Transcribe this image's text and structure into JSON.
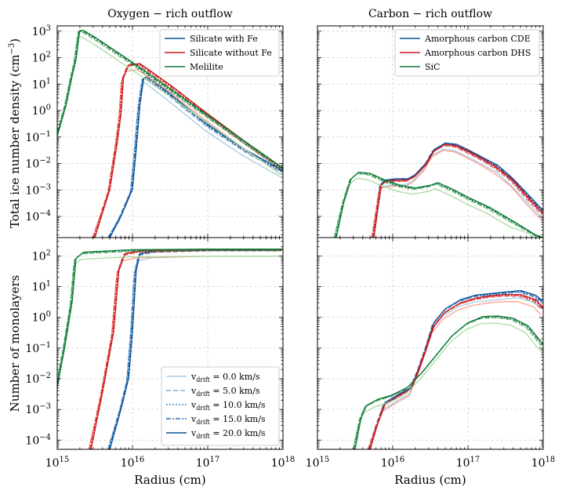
{
  "figure": {
    "xlabel": "Radius (cm)",
    "ylabel_top": "Total ice number density (cm",
    "ylabel_top_exp": "−3",
    "ylabel_top_close": ")",
    "ylabel_bottom": "Number of monolayers"
  },
  "chart_data": [
    {
      "type": "line",
      "id": "oxygen-density",
      "title": "Oxygen − rich outflow",
      "xlabel": "Radius (cm)",
      "ylabel": "Total ice number density (cm^-3)",
      "xscale": "log",
      "yscale": "log",
      "xlim_exp": [
        15,
        18
      ],
      "ylim_exp": [
        -4.8,
        3.2
      ],
      "grid": true,
      "legend_position": "top-right",
      "series": [
        {
          "name": "Silicate with Fe",
          "color": "#08519c",
          "light": "#a6cbe6",
          "points_log": [
            [
              15.7,
              -4.8
            ],
            [
              15.85,
              -4.0
            ],
            [
              16.0,
              -3.0
            ],
            [
              16.05,
              -1.5
            ],
            [
              16.1,
              0.2
            ],
            [
              16.15,
              1.2
            ],
            [
              16.2,
              1.25
            ],
            [
              16.5,
              0.6
            ],
            [
              17.0,
              -0.55
            ],
            [
              17.5,
              -1.5
            ],
            [
              18.0,
              -2.3
            ]
          ]
        },
        {
          "name": "Silicate without Fe",
          "color": "#cb181d",
          "light": "#fca189",
          "points_log": [
            [
              15.5,
              -4.8
            ],
            [
              15.7,
              -3.0
            ],
            [
              15.8,
              -1.2
            ],
            [
              15.85,
              -0.1
            ],
            [
              15.88,
              1.2
            ],
            [
              15.95,
              1.7
            ],
            [
              16.1,
              1.75
            ],
            [
              16.5,
              0.95
            ],
            [
              17.0,
              -0.15
            ],
            [
              17.5,
              -1.2
            ],
            [
              18.0,
              -2.2
            ]
          ]
        },
        {
          "name": "Melilite",
          "color": "#0e7a36",
          "light": "#a8dca0",
          "points_log": [
            [
              15.0,
              -1.0
            ],
            [
              15.12,
              0.2
            ],
            [
              15.2,
              1.3
            ],
            [
              15.25,
              1.9
            ],
            [
              15.3,
              3.0
            ],
            [
              15.35,
              3.0
            ],
            [
              15.5,
              2.75
            ],
            [
              16.0,
              1.8
            ],
            [
              16.5,
              0.8
            ],
            [
              17.0,
              -0.2
            ],
            [
              17.5,
              -1.2
            ],
            [
              18.0,
              -2.2
            ]
          ]
        }
      ],
      "legend": [
        "Silicate with Fe",
        "Silicate without Fe",
        "Melilite"
      ]
    },
    {
      "type": "line",
      "id": "carbon-density",
      "title": "Carbon − rich outflow",
      "xlabel": "Radius (cm)",
      "ylabel": "",
      "xscale": "log",
      "yscale": "log",
      "xlim_exp": [
        15,
        18
      ],
      "ylim_exp": [
        -4.8,
        3.2
      ],
      "grid": true,
      "legend_position": "top-right",
      "series": [
        {
          "name": "Amorphous carbon CDE",
          "color": "#08519c",
          "light": "#a6cbe6",
          "points_log": [
            [
              15.75,
              -4.8
            ],
            [
              15.8,
              -3.8
            ],
            [
              15.85,
              -2.8
            ],
            [
              15.9,
              -2.65
            ],
            [
              16.05,
              -2.6
            ],
            [
              16.2,
              -2.6
            ],
            [
              16.3,
              -2.45
            ],
            [
              16.45,
              -2.0
            ],
            [
              16.55,
              -1.5
            ],
            [
              16.7,
              -1.25
            ],
            [
              16.85,
              -1.3
            ],
            [
              17.0,
              -1.5
            ],
            [
              17.2,
              -1.8
            ],
            [
              17.4,
              -2.1
            ],
            [
              17.6,
              -2.6
            ],
            [
              17.8,
              -3.2
            ],
            [
              18.0,
              -3.8
            ]
          ]
        },
        {
          "name": "Amorphous carbon DHS",
          "color": "#cb181d",
          "light": "#fca189",
          "points_log": [
            [
              15.75,
              -4.8
            ],
            [
              15.8,
              -3.8
            ],
            [
              15.85,
              -2.85
            ],
            [
              15.9,
              -2.7
            ],
            [
              16.05,
              -2.65
            ],
            [
              16.2,
              -2.65
            ],
            [
              16.3,
              -2.5
            ],
            [
              16.45,
              -2.05
            ],
            [
              16.55,
              -1.55
            ],
            [
              16.7,
              -1.3
            ],
            [
              16.85,
              -1.35
            ],
            [
              17.0,
              -1.55
            ],
            [
              17.2,
              -1.85
            ],
            [
              17.4,
              -2.2
            ],
            [
              17.6,
              -2.65
            ],
            [
              17.8,
              -3.3
            ],
            [
              18.0,
              -3.9
            ]
          ]
        },
        {
          "name": "SiC",
          "color": "#0e7a36",
          "light": "#a8dca0",
          "points_log": [
            [
              15.25,
              -4.8
            ],
            [
              15.35,
              -3.5
            ],
            [
              15.45,
              -2.6
            ],
            [
              15.55,
              -2.35
            ],
            [
              15.7,
              -2.4
            ],
            [
              15.9,
              -2.65
            ],
            [
              16.1,
              -2.85
            ],
            [
              16.3,
              -2.95
            ],
            [
              16.5,
              -2.85
            ],
            [
              16.6,
              -2.75
            ],
            [
              16.8,
              -3.0
            ],
            [
              17.0,
              -3.3
            ],
            [
              17.3,
              -3.7
            ],
            [
              17.6,
              -4.2
            ],
            [
              17.9,
              -4.7
            ],
            [
              18.0,
              -4.8
            ]
          ]
        }
      ],
      "legend": [
        "Amorphous carbon CDE",
        "Amorphous carbon DHS",
        "SiC"
      ]
    },
    {
      "type": "line",
      "id": "oxygen-monolayers",
      "title": "",
      "xlabel": "Radius (cm)",
      "ylabel": "Number of monolayers",
      "xscale": "log",
      "yscale": "log",
      "xlim_exp": [
        15,
        18
      ],
      "ylim_exp": [
        -4.3,
        2.6
      ],
      "grid": true,
      "legend_position": "bottom-right",
      "series": [
        {
          "name": "Silicate with Fe",
          "color": "#08519c",
          "light": "#a6cbe6",
          "points_log": [
            [
              15.7,
              -4.3
            ],
            [
              15.85,
              -3.0
            ],
            [
              15.95,
              -2.0
            ],
            [
              16.0,
              -0.5
            ],
            [
              16.05,
              1.5
            ],
            [
              16.1,
              2.05
            ],
            [
              16.3,
              2.15
            ],
            [
              17.0,
              2.2
            ],
            [
              18.0,
              2.2
            ]
          ]
        },
        {
          "name": "Silicate without Fe",
          "color": "#cb181d",
          "light": "#fca189",
          "points_log": [
            [
              15.45,
              -4.3
            ],
            [
              15.6,
              -2.5
            ],
            [
              15.75,
              -0.5
            ],
            [
              15.82,
              1.5
            ],
            [
              15.9,
              2.05
            ],
            [
              16.1,
              2.15
            ],
            [
              17.0,
              2.2
            ],
            [
              18.0,
              2.2
            ]
          ]
        },
        {
          "name": "Melilite",
          "color": "#0e7a36",
          "light": "#a8dca0",
          "points_log": [
            [
              15.0,
              -2.3
            ],
            [
              15.1,
              -1.0
            ],
            [
              15.2,
              0.5
            ],
            [
              15.25,
              1.9
            ],
            [
              15.35,
              2.1
            ],
            [
              15.5,
              2.12
            ],
            [
              16.0,
              2.18
            ],
            [
              17.0,
              2.2
            ],
            [
              18.0,
              2.2
            ]
          ]
        }
      ],
      "legend": [
        "vdrift = 0.0 km/s",
        "vdrift = 5.0 km/s",
        "vdrift = 10.0 km/s",
        "vdrift = 15.0 km/s",
        "vdrift = 20.0 km/s"
      ]
    },
    {
      "type": "line",
      "id": "carbon-monolayers",
      "title": "",
      "xlabel": "Radius (cm)",
      "ylabel": "",
      "xscale": "log",
      "yscale": "log",
      "xlim_exp": [
        15,
        18
      ],
      "ylim_exp": [
        -4.3,
        2.6
      ],
      "grid": true,
      "legend_position": "none",
      "series": [
        {
          "name": "Amorphous carbon CDE",
          "color": "#08519c",
          "light": "#a6cbe6",
          "points_log": [
            [
              15.7,
              -4.3
            ],
            [
              15.8,
              -3.5
            ],
            [
              15.9,
              -2.8
            ],
            [
              16.1,
              -2.5
            ],
            [
              16.25,
              -2.3
            ],
            [
              16.35,
              -1.7
            ],
            [
              16.45,
              -1.0
            ],
            [
              16.55,
              -0.2
            ],
            [
              16.7,
              0.25
            ],
            [
              16.9,
              0.55
            ],
            [
              17.1,
              0.7
            ],
            [
              17.3,
              0.75
            ],
            [
              17.5,
              0.8
            ],
            [
              17.7,
              0.85
            ],
            [
              17.9,
              0.7
            ],
            [
              18.0,
              0.5
            ]
          ]
        },
        {
          "name": "Amorphous carbon DHS",
          "color": "#cb181d",
          "light": "#fca189",
          "points_log": [
            [
              15.7,
              -4.3
            ],
            [
              15.8,
              -3.5
            ],
            [
              15.9,
              -2.85
            ],
            [
              16.1,
              -2.55
            ],
            [
              16.25,
              -2.35
            ],
            [
              16.35,
              -1.75
            ],
            [
              16.45,
              -1.05
            ],
            [
              16.55,
              -0.3
            ],
            [
              16.7,
              0.15
            ],
            [
              16.9,
              0.45
            ],
            [
              17.1,
              0.6
            ],
            [
              17.3,
              0.68
            ],
            [
              17.5,
              0.72
            ],
            [
              17.7,
              0.72
            ],
            [
              17.9,
              0.55
            ],
            [
              18.0,
              0.3
            ]
          ]
        },
        {
          "name": "SiC",
          "color": "#0e7a36",
          "light": "#a8dca0",
          "points_log": [
            [
              15.5,
              -4.3
            ],
            [
              15.58,
              -3.3
            ],
            [
              15.65,
              -2.9
            ],
            [
              15.8,
              -2.7
            ],
            [
              16.0,
              -2.55
            ],
            [
              16.2,
              -2.3
            ],
            [
              16.4,
              -1.8
            ],
            [
              16.6,
              -1.2
            ],
            [
              16.8,
              -0.6
            ],
            [
              17.0,
              -0.2
            ],
            [
              17.2,
              0.0
            ],
            [
              17.4,
              0.02
            ],
            [
              17.6,
              -0.05
            ],
            [
              17.8,
              -0.3
            ],
            [
              18.0,
              -0.9
            ]
          ]
        }
      ]
    }
  ],
  "legends": {
    "oxygen": [
      "Silicate with Fe",
      "Silicate without Fe",
      "Melilite"
    ],
    "carbon": [
      "Amorphous carbon CDE",
      "Amorphous carbon DHS",
      "SiC"
    ],
    "vdrift": [
      {
        "prefix": "v",
        "sub": "drift",
        "value": " = 0.0 km/s",
        "style": "solid-light"
      },
      {
        "prefix": "v",
        "sub": "drift",
        "value": " = 5.0 km/s",
        "style": "dashed"
      },
      {
        "prefix": "v",
        "sub": "drift",
        "value": " = 10.0 km/s",
        "style": "dotted"
      },
      {
        "prefix": "v",
        "sub": "drift",
        "value": " = 15.0 km/s",
        "style": "dashdot"
      },
      {
        "prefix": "v",
        "sub": "drift",
        "value": " = 20.0 km/s",
        "style": "solid"
      }
    ]
  },
  "ticks": {
    "x": [
      "10",
      "10",
      "10",
      "10"
    ],
    "x_exp": [
      "15",
      "16",
      "17",
      "18"
    ],
    "y_top": [
      {
        "b": "10",
        "e": "3"
      },
      {
        "b": "10",
        "e": "2"
      },
      {
        "b": "10",
        "e": "1"
      },
      {
        "b": "10",
        "e": "0"
      },
      {
        "b": "10",
        "e": "−1"
      },
      {
        "b": "10",
        "e": "−2"
      },
      {
        "b": "10",
        "e": "−3"
      },
      {
        "b": "10",
        "e": "−4"
      }
    ],
    "y_bottom": [
      {
        "b": "10",
        "e": "2"
      },
      {
        "b": "10",
        "e": "1"
      },
      {
        "b": "10",
        "e": "0"
      },
      {
        "b": "10",
        "e": "−1"
      },
      {
        "b": "10",
        "e": "−2"
      },
      {
        "b": "10",
        "e": "−3"
      },
      {
        "b": "10",
        "e": "−4"
      }
    ]
  },
  "colors": {
    "blue": "#08519c",
    "red": "#cb181d",
    "green": "#0e7a36",
    "blue_light": "#a6cbe6",
    "red_light": "#fca189",
    "green_light": "#a8dca0"
  }
}
